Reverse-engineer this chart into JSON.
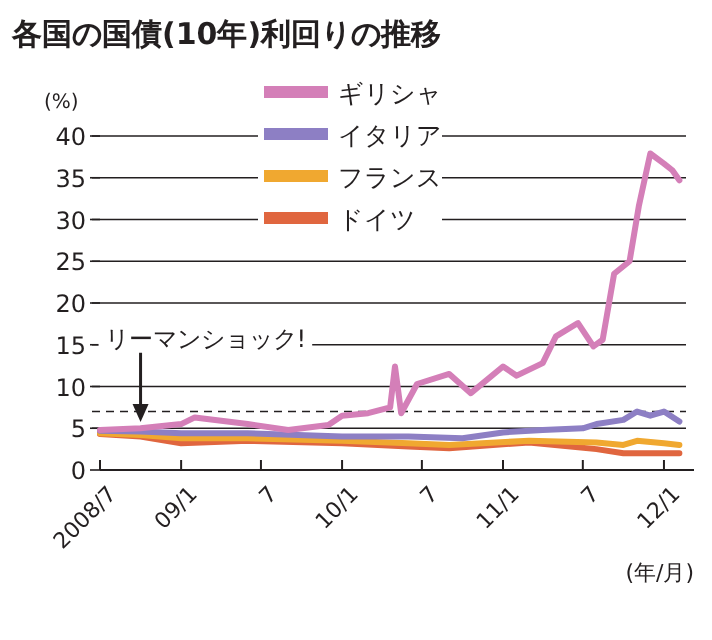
{
  "chart_data": {
    "type": "line",
    "title": "各国の国債(10年)利回りの推移",
    "ylabel": "(%)",
    "xlabel": "(年/月)",
    "xlim": [
      "2008-07",
      "2012-02-20"
    ],
    "xticks": [
      {
        "value": "2008-07",
        "label": "2008/7"
      },
      {
        "value": "2009-01",
        "label": "09/1"
      },
      {
        "value": "2009-07",
        "label": "7"
      },
      {
        "value": "2010-01",
        "label": "10/1"
      },
      {
        "value": "2010-07",
        "label": "7"
      },
      {
        "value": "2011-01",
        "label": "11/1"
      },
      {
        "value": "2011-07",
        "label": "7"
      },
      {
        "value": "2012-01",
        "label": "12/1"
      }
    ],
    "ylim": [
      0,
      40
    ],
    "yticks": [
      0,
      5,
      10,
      15,
      20,
      25,
      30,
      35,
      40
    ],
    "grid": "y",
    "legend": "top",
    "line_style": "solid",
    "ref_lines": [
      {
        "axis": "y",
        "value": 7,
        "line_style": "dashed",
        "color": "#231f20"
      }
    ],
    "annotations": [
      {
        "text": "リーマンショック!",
        "x": "2008-10",
        "y": 5.5
      }
    ],
    "series": [
      {
        "name": "ギリシャ",
        "color": "#d47fb8",
        "x": [
          "2008-07",
          "2008-10",
          "2009-01",
          "2009-02",
          "2009-06",
          "2009-09",
          "2009-12",
          "2010-01",
          "2010-03",
          "2010-04-20",
          "2010-05",
          "2010-05-15",
          "2010-06-20",
          "2010-09",
          "2010-10-20",
          "2011-01",
          "2011-02",
          "2011-04",
          "2011-05",
          "2011-06-20",
          "2011-07-25",
          "2011-08-15",
          "2011-09-10",
          "2011-10-15",
          "2011-11-05",
          "2011-12-01",
          "2012-01",
          "2012-01-20",
          "2012-02-05"
        ],
        "values": [
          4.8,
          5.0,
          5.5,
          6.3,
          5.5,
          4.8,
          5.4,
          6.5,
          6.8,
          7.5,
          12.4,
          6.8,
          10.3,
          11.5,
          9.2,
          12.4,
          11.3,
          12.8,
          16.0,
          17.6,
          14.8,
          15.6,
          23.5,
          25.0,
          31.6,
          37.9,
          36.7,
          35.9,
          34.7
        ]
      },
      {
        "name": "イタリア",
        "color": "#8d7fc4",
        "x": [
          "2008-07",
          "2008-10",
          "2009-01",
          "2009-06",
          "2010-01",
          "2010-06",
          "2010-10",
          "2011-01",
          "2011-04",
          "2011-07",
          "2011-08",
          "2011-10",
          "2011-11",
          "2011-12",
          "2012-01",
          "2012-02-05"
        ],
        "values": [
          4.7,
          4.6,
          4.4,
          4.4,
          4.0,
          4.0,
          3.8,
          4.5,
          4.8,
          5.0,
          5.5,
          6.0,
          7.0,
          6.5,
          7.0,
          5.8
        ]
      },
      {
        "name": "フランス",
        "color": "#f0a830",
        "x": [
          "2008-07",
          "2008-10",
          "2009-01",
          "2009-06",
          "2010-01",
          "2010-06",
          "2010-09",
          "2011-03",
          "2011-08",
          "2011-10",
          "2011-11",
          "2012-01",
          "2012-02-05"
        ],
        "values": [
          4.4,
          4.2,
          3.8,
          3.8,
          3.5,
          3.2,
          3.0,
          3.5,
          3.3,
          3.0,
          3.5,
          3.2,
          3.0
        ]
      },
      {
        "name": "ドイツ",
        "color": "#e0663f",
        "x": [
          "2008-07",
          "2008-10",
          "2009-01",
          "2009-06",
          "2010-01",
          "2010-06",
          "2010-09",
          "2011-03",
          "2011-08",
          "2011-10",
          "2011-12",
          "2012-02-05"
        ],
        "values": [
          4.3,
          4.0,
          3.2,
          3.5,
          3.2,
          2.8,
          2.6,
          3.3,
          2.5,
          2.0,
          2.0,
          2.0
        ]
      }
    ]
  }
}
